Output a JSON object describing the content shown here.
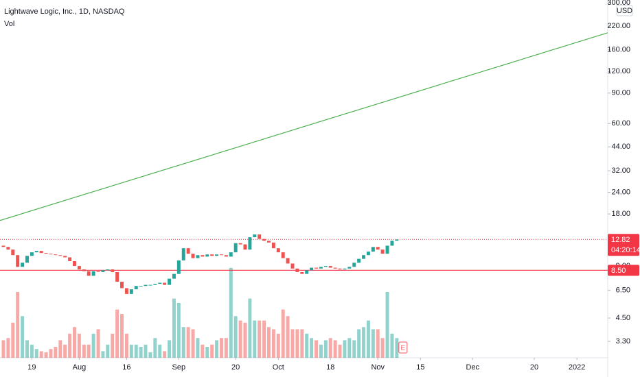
{
  "chart_data": {
    "type": "candlestick",
    "title": "Lightwave Logic, Inc., 1D, NASDAQ",
    "volume_label": "Vol",
    "currency": "USD",
    "x": [
      0,
      1,
      2,
      3,
      4,
      5,
      6,
      7,
      8,
      9,
      10,
      11,
      12,
      13,
      14,
      15,
      16,
      17,
      18,
      19,
      20,
      21,
      22,
      23,
      24,
      25,
      26,
      27,
      28,
      29,
      30,
      31,
      32,
      33,
      34,
      35,
      36,
      37,
      38,
      39,
      40,
      41,
      42,
      43,
      44,
      45,
      46,
      47,
      48,
      49,
      50,
      51,
      52,
      53,
      54,
      55,
      56,
      57,
      58,
      59,
      60,
      61,
      62,
      63,
      64,
      65,
      66,
      67,
      68,
      69,
      70,
      71,
      72,
      73,
      74,
      75,
      76,
      77,
      78,
      79,
      80,
      81,
      82,
      83
    ],
    "open": [
      11.8,
      11.6,
      11.2,
      10.4,
      8.9,
      9.4,
      10.3,
      10.8,
      11.0,
      10.7,
      10.6,
      10.5,
      10.4,
      10.3,
      10.1,
      9.6,
      9.0,
      8.6,
      8.4,
      7.9,
      8.4,
      8.3,
      8.5,
      8.6,
      8.3,
      7.3,
      6.7,
      6.2,
      6.6,
      6.9,
      6.9,
      7.0,
      7.0,
      7.1,
      7.2,
      7.0,
      7.6,
      8.1,
      9.7,
      11.4,
      10.6,
      10.0,
      10.4,
      10.2,
      10.5,
      10.3,
      10.5,
      10.4,
      10.2,
      10.8,
      12.2,
      12.0,
      11.2,
      13.2,
      13.7,
      12.9,
      12.6,
      12.3,
      11.4,
      10.8,
      10.0,
      9.3,
      8.7,
      8.3,
      8.1,
      8.5,
      8.8,
      8.7,
      8.9,
      9.0,
      8.8,
      8.7,
      8.6,
      8.7,
      8.9,
      9.4,
      9.9,
      10.4,
      10.9,
      11.6,
      11.2,
      10.6,
      11.8,
      12.6
    ],
    "close": [
      11.6,
      11.2,
      10.4,
      8.9,
      9.4,
      10.3,
      10.8,
      11.0,
      10.7,
      10.6,
      10.5,
      10.4,
      10.3,
      10.1,
      9.6,
      9.0,
      8.6,
      8.4,
      7.9,
      8.4,
      8.3,
      8.5,
      8.6,
      8.3,
      7.3,
      6.7,
      6.2,
      6.6,
      6.9,
      6.9,
      7.0,
      7.0,
      7.1,
      7.2,
      7.0,
      7.6,
      8.1,
      9.7,
      11.4,
      10.6,
      10.0,
      10.4,
      10.2,
      10.5,
      10.3,
      10.5,
      10.4,
      10.2,
      10.8,
      12.2,
      12.0,
      11.2,
      13.2,
      13.7,
      12.9,
      12.6,
      12.3,
      11.4,
      10.8,
      10.0,
      9.3,
      8.7,
      8.3,
      8.1,
      8.5,
      8.8,
      8.7,
      8.9,
      9.0,
      8.8,
      8.7,
      8.6,
      8.7,
      8.9,
      9.4,
      9.9,
      10.4,
      10.9,
      11.6,
      11.2,
      10.6,
      11.8,
      12.6,
      12.82
    ],
    "volume": [
      0.8,
      0.9,
      1.6,
      3.0,
      1.9,
      0.8,
      0.6,
      0.4,
      0.3,
      0.25,
      0.4,
      0.5,
      0.8,
      0.6,
      1.1,
      1.4,
      1.1,
      0.6,
      0.6,
      1.1,
      1.3,
      0.3,
      0.6,
      1.1,
      2.2,
      2.0,
      1.1,
      0.6,
      0.6,
      0.5,
      0.6,
      0.25,
      0.9,
      0.6,
      0.3,
      0.8,
      2.7,
      2.5,
      1.4,
      1.4,
      1.3,
      0.9,
      0.6,
      0.5,
      0.6,
      0.8,
      0.9,
      0.9,
      4.1,
      1.9,
      1.7,
      1.6,
      2.7,
      1.7,
      1.7,
      1.7,
      1.4,
      1.3,
      1.1,
      2.2,
      1.9,
      1.3,
      1.3,
      1.3,
      1.1,
      0.9,
      0.8,
      0.6,
      0.8,
      0.9,
      0.8,
      0.6,
      0.8,
      0.9,
      0.8,
      1.3,
      1.4,
      1.7,
      1.3,
      1.3,
      0.9,
      3.0,
      1.1,
      0.9
    ],
    "up_color": "#26a69a",
    "down_color": "#ef5350",
    "xlim": [
      -0.72,
      127.5
    ],
    "xticks": [
      {
        "value": 6,
        "label": "19"
      },
      {
        "value": 16,
        "label": "Aug"
      },
      {
        "value": 26,
        "label": "16"
      },
      {
        "value": 37,
        "label": "Sep"
      },
      {
        "value": 49,
        "label": "20"
      },
      {
        "value": 58,
        "label": "Oct"
      },
      {
        "value": 69,
        "label": "18"
      },
      {
        "value": 79,
        "label": "Nov"
      },
      {
        "value": 88,
        "label": "15"
      },
      {
        "value": 99,
        "label": "Dec"
      },
      {
        "value": 112,
        "label": "20"
      },
      {
        "value": 121,
        "label": "2022"
      }
    ],
    "ylim": [
      2.65,
      311
    ],
    "log_scale": true,
    "yticks": [
      {
        "value": 3.3,
        "label": "3.30"
      },
      {
        "value": 4.5,
        "label": "4.50"
      },
      {
        "value": 6.5,
        "label": "6.50"
      },
      {
        "value": 9,
        "label": "9.00"
      },
      {
        "value": 18,
        "label": "18.00"
      },
      {
        "value": 24,
        "label": "24.00"
      },
      {
        "value": 32,
        "label": "32.00"
      },
      {
        "value": 44,
        "label": "44.00"
      },
      {
        "value": 60,
        "label": "60.00"
      },
      {
        "value": 90,
        "label": "90.00"
      },
      {
        "value": 120,
        "label": "120.00"
      },
      {
        "value": 160,
        "label": "160.00"
      },
      {
        "value": 220,
        "label": "220.00"
      },
      {
        "value": 300,
        "label": "300.00"
      }
    ],
    "grid": false,
    "volume_lim": [
      0,
      12
    ],
    "last_price": {
      "value": 12.82,
      "label": "12.82",
      "countdown": "04:20:14",
      "color": "#f23645"
    },
    "hline": {
      "value": 8.5,
      "label": "8.50",
      "color": "#f23645"
    },
    "trendline": {
      "x": [
        -0.72,
        127.5
      ],
      "values": [
        16.5,
        201
      ],
      "color": "#4caf50"
    },
    "event_marker": {
      "x": 84.3,
      "label": "E"
    }
  }
}
